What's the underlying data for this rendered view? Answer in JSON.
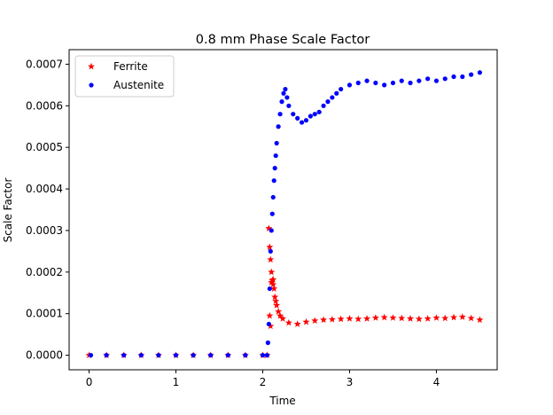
{
  "chart_data": {
    "type": "scatter",
    "title": "0.8 mm Phase Scale Factor",
    "xlabel": "Time",
    "ylabel": "Scale Factor",
    "xlim": [
      -0.23,
      4.7
    ],
    "ylim": [
      -3.5e-05,
      0.000735
    ],
    "xticks": [
      0,
      1,
      2,
      3,
      4
    ],
    "xtick_labels": [
      "0",
      "1",
      "2",
      "3",
      "4"
    ],
    "yticks": [
      0,
      0.0001,
      0.0002,
      0.0003,
      0.0004,
      0.0005,
      0.0006,
      0.0007
    ],
    "ytick_labels": [
      "0.0000",
      "0.0001",
      "0.0002",
      "0.0003",
      "0.0004",
      "0.0005",
      "0.0006",
      "0.0007"
    ],
    "grid": false,
    "legend_position": "top-left",
    "series": [
      {
        "name": "Ferrite",
        "marker": "star",
        "color": "#ff0000",
        "points": [
          [
            0,
            0
          ],
          [
            0.2,
            0
          ],
          [
            0.4,
            0
          ],
          [
            0.6,
            0
          ],
          [
            0.8,
            0
          ],
          [
            1.0,
            0
          ],
          [
            1.2,
            0
          ],
          [
            1.4,
            0
          ],
          [
            1.6,
            0
          ],
          [
            1.8,
            0
          ],
          [
            2.0,
            0
          ],
          [
            2.05,
            0
          ],
          [
            2.07,
            0.000305
          ],
          [
            2.08,
            0.00026
          ],
          [
            2.09,
            0.00023
          ],
          [
            2.1,
            0.0002
          ],
          [
            2.11,
            0.00018
          ],
          [
            2.12,
            0.00017
          ],
          [
            2.13,
            0.00016
          ],
          [
            2.14,
            0.00014
          ],
          [
            2.15,
            0.00013
          ],
          [
            2.16,
            0.00012
          ],
          [
            2.18,
            0.000105
          ],
          [
            2.2,
            9.5e-05
          ],
          [
            2.23,
            8.8e-05
          ],
          [
            2.08,
            9.5e-05
          ],
          [
            2.09,
            7e-05
          ],
          [
            2.1,
            0.000175
          ],
          [
            2.12,
            0.000182
          ],
          [
            2.3,
            7.8e-05
          ],
          [
            2.4,
            7.5e-05
          ],
          [
            2.5,
            8e-05
          ],
          [
            2.6,
            8.3e-05
          ],
          [
            2.7,
            8.5e-05
          ],
          [
            2.8,
            8.6e-05
          ],
          [
            2.9,
            8.7e-05
          ],
          [
            3.0,
            8.8e-05
          ],
          [
            3.1,
            8.7e-05
          ],
          [
            3.2,
            8.8e-05
          ],
          [
            3.3,
            9e-05
          ],
          [
            3.4,
            9.1e-05
          ],
          [
            3.5,
            9e-05
          ],
          [
            3.6,
            8.9e-05
          ],
          [
            3.7,
            8.8e-05
          ],
          [
            3.8,
            8.7e-05
          ],
          [
            3.9,
            8.8e-05
          ],
          [
            4.0,
            9e-05
          ],
          [
            4.1,
            8.9e-05
          ],
          [
            4.2,
            9.1e-05
          ],
          [
            4.3,
            9.2e-05
          ],
          [
            4.4,
            8.9e-05
          ],
          [
            4.5,
            8.5e-05
          ]
        ]
      },
      {
        "name": "Austenite",
        "marker": "circle",
        "color": "#0000ff",
        "points": [
          [
            0.02,
            0
          ],
          [
            0.2,
            0
          ],
          [
            0.4,
            0
          ],
          [
            0.6,
            0
          ],
          [
            0.8,
            0
          ],
          [
            1.0,
            0
          ],
          [
            1.2,
            0
          ],
          [
            1.4,
            0
          ],
          [
            1.6,
            0
          ],
          [
            1.8,
            0
          ],
          [
            2.0,
            0
          ],
          [
            2.05,
            0
          ],
          [
            2.06,
            3e-05
          ],
          [
            2.07,
            7.5e-05
          ],
          [
            2.08,
            0.00016
          ],
          [
            2.09,
            0.00025
          ],
          [
            2.1,
            0.0003
          ],
          [
            2.11,
            0.00034
          ],
          [
            2.12,
            0.00038
          ],
          [
            2.13,
            0.00042
          ],
          [
            2.14,
            0.00045
          ],
          [
            2.15,
            0.00048
          ],
          [
            2.16,
            0.00051
          ],
          [
            2.18,
            0.00055
          ],
          [
            2.2,
            0.00058
          ],
          [
            2.22,
            0.00061
          ],
          [
            2.24,
            0.00063
          ],
          [
            2.26,
            0.00064
          ],
          [
            2.28,
            0.00062
          ],
          [
            2.3,
            0.0006
          ],
          [
            2.35,
            0.00058
          ],
          [
            2.4,
            0.00057
          ],
          [
            2.45,
            0.00056
          ],
          [
            2.5,
            0.000565
          ],
          [
            2.55,
            0.000575
          ],
          [
            2.6,
            0.00058
          ],
          [
            2.65,
            0.000585
          ],
          [
            2.7,
            0.0006
          ],
          [
            2.75,
            0.00061
          ],
          [
            2.8,
            0.00062
          ],
          [
            2.85,
            0.00063
          ],
          [
            2.9,
            0.00064
          ],
          [
            3.0,
            0.00065
          ],
          [
            3.1,
            0.000655
          ],
          [
            3.2,
            0.00066
          ],
          [
            3.3,
            0.000655
          ],
          [
            3.4,
            0.00065
          ],
          [
            3.5,
            0.000655
          ],
          [
            3.6,
            0.00066
          ],
          [
            3.7,
            0.000655
          ],
          [
            3.8,
            0.00066
          ],
          [
            3.9,
            0.000665
          ],
          [
            4.0,
            0.00066
          ],
          [
            4.1,
            0.000665
          ],
          [
            4.2,
            0.00067
          ],
          [
            4.3,
            0.00067
          ],
          [
            4.4,
            0.000675
          ],
          [
            4.5,
            0.00068
          ]
        ]
      }
    ]
  }
}
